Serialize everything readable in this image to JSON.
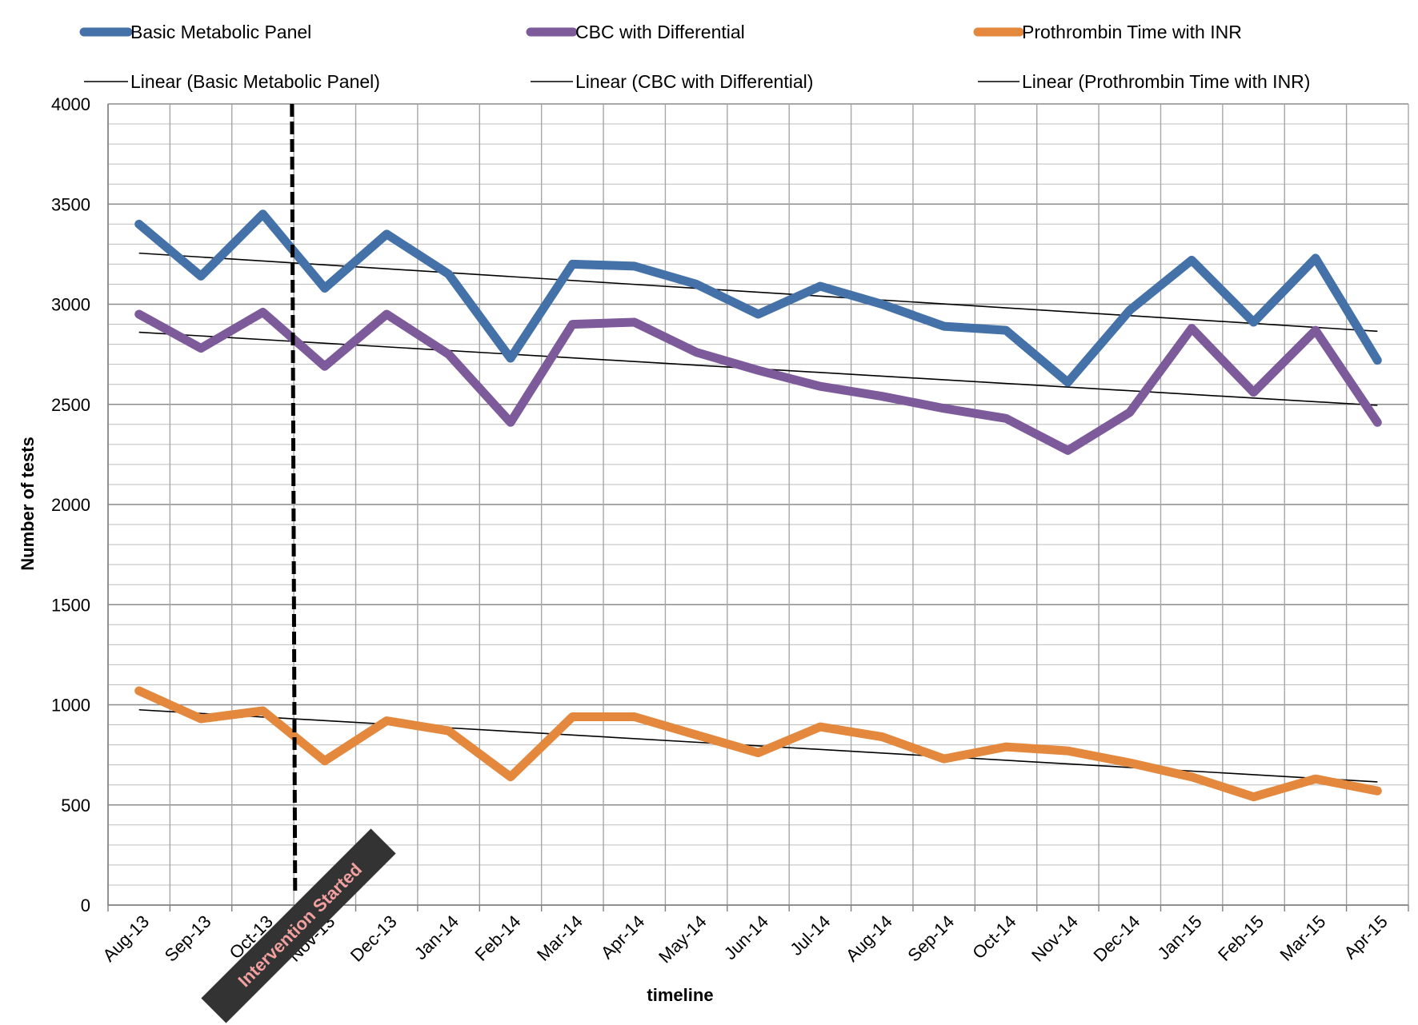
{
  "chart_data": {
    "type": "line",
    "xlabel": "timeline",
    "ylabel": "Number of tests",
    "ylim": [
      0,
      4000
    ],
    "yticks": [
      0,
      500,
      1000,
      1500,
      2000,
      2500,
      3000,
      3500,
      4000
    ],
    "y_minor_step": 100,
    "grid": true,
    "legend_position": "top",
    "categories": [
      "Aug-13",
      "Sep-13",
      "Oct-13",
      "Nov-13",
      "Dec-13",
      "Jan-14",
      "Feb-14",
      "Mar-14",
      "Apr-14",
      "May-14",
      "Jun-14",
      "Jul-14",
      "Aug-14",
      "Sep-14",
      "Oct-14",
      "Nov-14",
      "Dec-14",
      "Jan-15",
      "Feb-15",
      "Mar-15",
      "Apr-15"
    ],
    "series": [
      {
        "name": "Basic Metabolic Panel",
        "color": "#4472a8",
        "values": [
          3400,
          3140,
          3450,
          3080,
          3350,
          3150,
          2730,
          3200,
          3190,
          3100,
          2950,
          3090,
          3000,
          2890,
          2870,
          2610,
          2970,
          3220,
          2910,
          3230,
          2720
        ],
        "trendline": {
          "name": "Linear (Basic Metabolic Panel)",
          "start": 3255,
          "end": 2865
        }
      },
      {
        "name": "CBC with Differential",
        "color": "#7d5a9a",
        "values": [
          2950,
          2780,
          2960,
          2690,
          2950,
          2750,
          2410,
          2900,
          2910,
          2760,
          2670,
          2590,
          2540,
          2480,
          2430,
          2270,
          2460,
          2880,
          2560,
          2870,
          2410
        ],
        "trendline": {
          "name": "Linear (CBC with Differential)",
          "start": 2860,
          "end": 2495
        }
      },
      {
        "name": "Prothrombin Time with INR",
        "color": "#e3883c",
        "values": [
          1070,
          930,
          970,
          720,
          920,
          870,
          640,
          940,
          940,
          850,
          760,
          890,
          840,
          730,
          790,
          770,
          710,
          640,
          540,
          630,
          570
        ],
        "trendline": {
          "name": "Linear (Prothrombin Time with INR)",
          "start": 975,
          "end": 615
        }
      }
    ],
    "annotations": [
      {
        "type": "vertical-dashed-line",
        "x_category": "Oct-13",
        "offset": 0.97,
        "label": "Intervention Started"
      }
    ]
  },
  "legend": {
    "items": [
      "Basic Metabolic Panel",
      "CBC with Differential",
      "Prothrombin Time with INR"
    ],
    "trend_items": [
      "Linear (Basic Metabolic Panel)",
      "Linear (CBC with Differential)",
      "Linear (Prothrombin Time with INR)"
    ]
  },
  "annotation_label": "Intervention Started"
}
